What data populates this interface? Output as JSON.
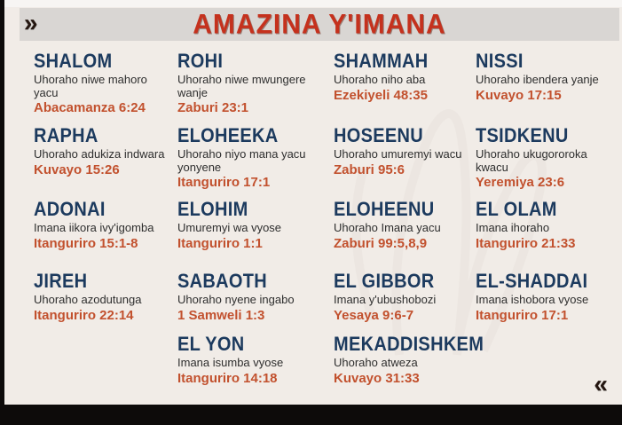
{
  "page": {
    "title": "AMAZINA Y'IMANA"
  },
  "nav": {
    "forward_icon": "»",
    "back_icon": "«"
  },
  "colors": {
    "bg": "#f1ece7",
    "title": "#c5311d",
    "name": "#1c3a5e",
    "desc": "#2e2e2e",
    "ref": "#c2512e"
  },
  "entries": [
    {
      "name": "SHALOM",
      "desc": "Uhoraho niwe mahoro yacu",
      "ref": "Abacamanza 6:24"
    },
    {
      "name": "ROHI",
      "desc": "Uhoraho niwe mwungere wanje",
      "ref": "Zaburi 23:1"
    },
    {
      "name": "SHAMMAH",
      "desc": "Uhoraho niho aba",
      "ref": "Ezekiyeli 48:35"
    },
    {
      "name": "NISSI",
      "desc": "Uhoraho ibendera yanje",
      "ref": "Kuvayo 17:15"
    },
    {
      "name": "RAPHA",
      "desc": "Uhoraho adukiza indwara",
      "ref": "Kuvayo 15:26"
    },
    {
      "name": "ELOHEEKA",
      "desc": "Uhoraho niyo mana yacu yonyene",
      "ref": "Itanguriro 17:1"
    },
    {
      "name": "HOSEENU",
      "desc": "Uhoraho umuremyi wacu",
      "ref": "Zaburi 95:6"
    },
    {
      "name": "TSIDKENU",
      "desc": "Uhoraho ukugororoka kwacu",
      "ref": "Yeremiya 23:6"
    },
    {
      "name": "ADONAI",
      "desc": "Imana iikora ivy'igomba",
      "ref": "Itanguriro 15:1-8"
    },
    {
      "name": "ELOHIM",
      "desc": "Umuremyi wa vyose",
      "ref": "Itanguriro 1:1"
    },
    {
      "name": "ELOHEENU",
      "desc": "Uhoraho Imana yacu",
      "ref": "Zaburi 99:5,8,9"
    },
    {
      "name": "EL OLAM",
      "desc": "Imana ihoraho",
      "ref": "Itanguriro 21:33"
    },
    {
      "name": "JIREH",
      "desc": "Uhoraho azodutunga",
      "ref": "Itanguriro 22:14"
    },
    {
      "name": "SABAOTH",
      "desc": "Uhoraho nyene ingabo",
      "ref": "1 Samweli 1:3"
    },
    {
      "name": "EL GIBBOR",
      "desc": "Imana y'ubushobozi",
      "ref": "Yesaya 9:6-7"
    },
    {
      "name": "EL-SHADDAI",
      "desc": "Imana ishobora vyose",
      "ref": "Itanguriro 17:1"
    },
    {
      "name": "EL YON",
      "desc": "Imana isumba vyose",
      "ref": "Itanguriro 14:18"
    },
    {
      "name": "MEKADDISHKEM",
      "desc": "Uhoraho atweza",
      "ref": "Kuvayo 31:33"
    }
  ]
}
